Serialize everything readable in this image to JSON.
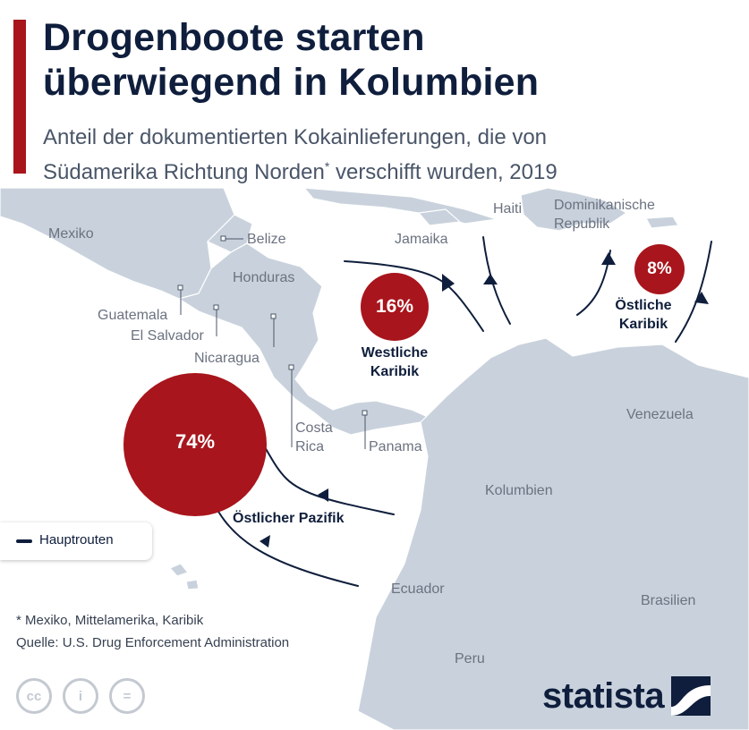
{
  "title": {
    "line1": "Drogenboote starten",
    "line2": "überwiegend in Kolumbien"
  },
  "subtitle": {
    "line1": "Anteil der dokumentierten Kokainlieferungen, die von",
    "line2_a": "Südamerika Richtung Norden",
    "line2_sup": "*",
    "line2_b": " verschifft wurden, 2019"
  },
  "countries": {
    "mexiko": "Mexiko",
    "belize": "Belize",
    "honduras": "Honduras",
    "guatemala": "Guatemala",
    "el_salvador": "El Salvador",
    "nicaragua": "Nicaragua",
    "costa_rica_1": "Costa",
    "costa_rica_2": "Rica",
    "panama": "Panama",
    "jamaika": "Jamaika",
    "haiti": "Haiti",
    "dom_rep_1": "Dominikanische",
    "dom_rep_2": "Republik",
    "venezuela": "Venezuela",
    "kolumbien": "Kolumbien",
    "ecuador": "Ecuador",
    "brasilien": "Brasilien",
    "peru": "Peru"
  },
  "routes": [
    {
      "name_1": "Östlicher Pazifik",
      "name_2": "",
      "share": "74%",
      "value": 74
    },
    {
      "name_1": "Westliche",
      "name_2": "Karibik",
      "share": "16%",
      "value": 16
    },
    {
      "name_1": "Östliche",
      "name_2": "Karibik",
      "share": "8%",
      "value": 8
    }
  ],
  "legend": {
    "label": "Hauptrouten"
  },
  "footnotes": {
    "note": "* Mexiko, Mittelamerika, Karibik",
    "source": "Quelle: U.S. Drug Enforcement Administration"
  },
  "license_icons": [
    "cc-icon",
    "by-icon",
    "nd-icon"
  ],
  "license_labels": {
    "cc": "cc",
    "by": "i",
    "nd": "="
  },
  "brand": {
    "name": "statista"
  },
  "colors": {
    "accent": "#a8151c",
    "title": "#0f1e3c",
    "land": "#c9d2dc",
    "route": "#0f1e3c"
  }
}
